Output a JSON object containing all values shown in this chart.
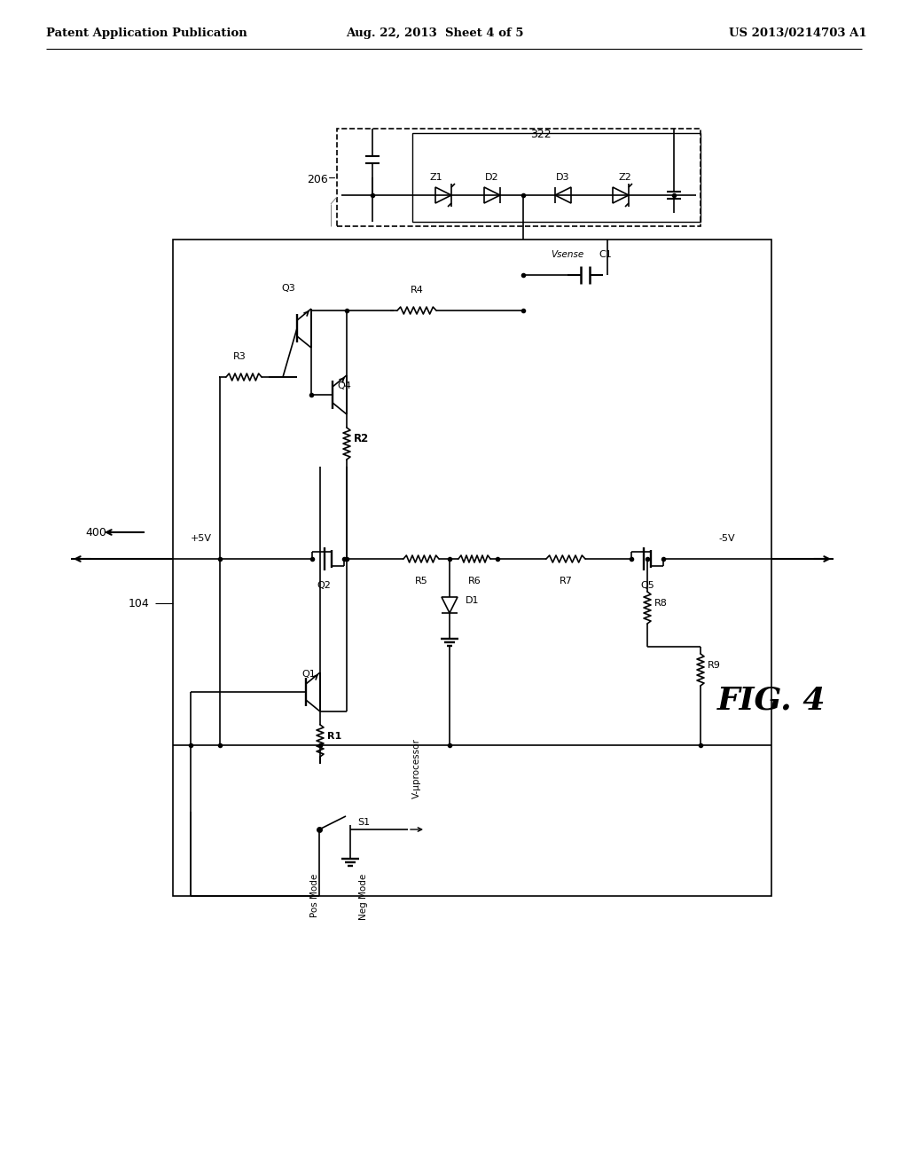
{
  "bg_color": "#ffffff",
  "header_left": "Patent Application Publication",
  "header_mid": "Aug. 22, 2013  Sheet 4 of 5",
  "header_right": "US 2013/0214703 A1",
  "fig_label": "FIG. 4"
}
